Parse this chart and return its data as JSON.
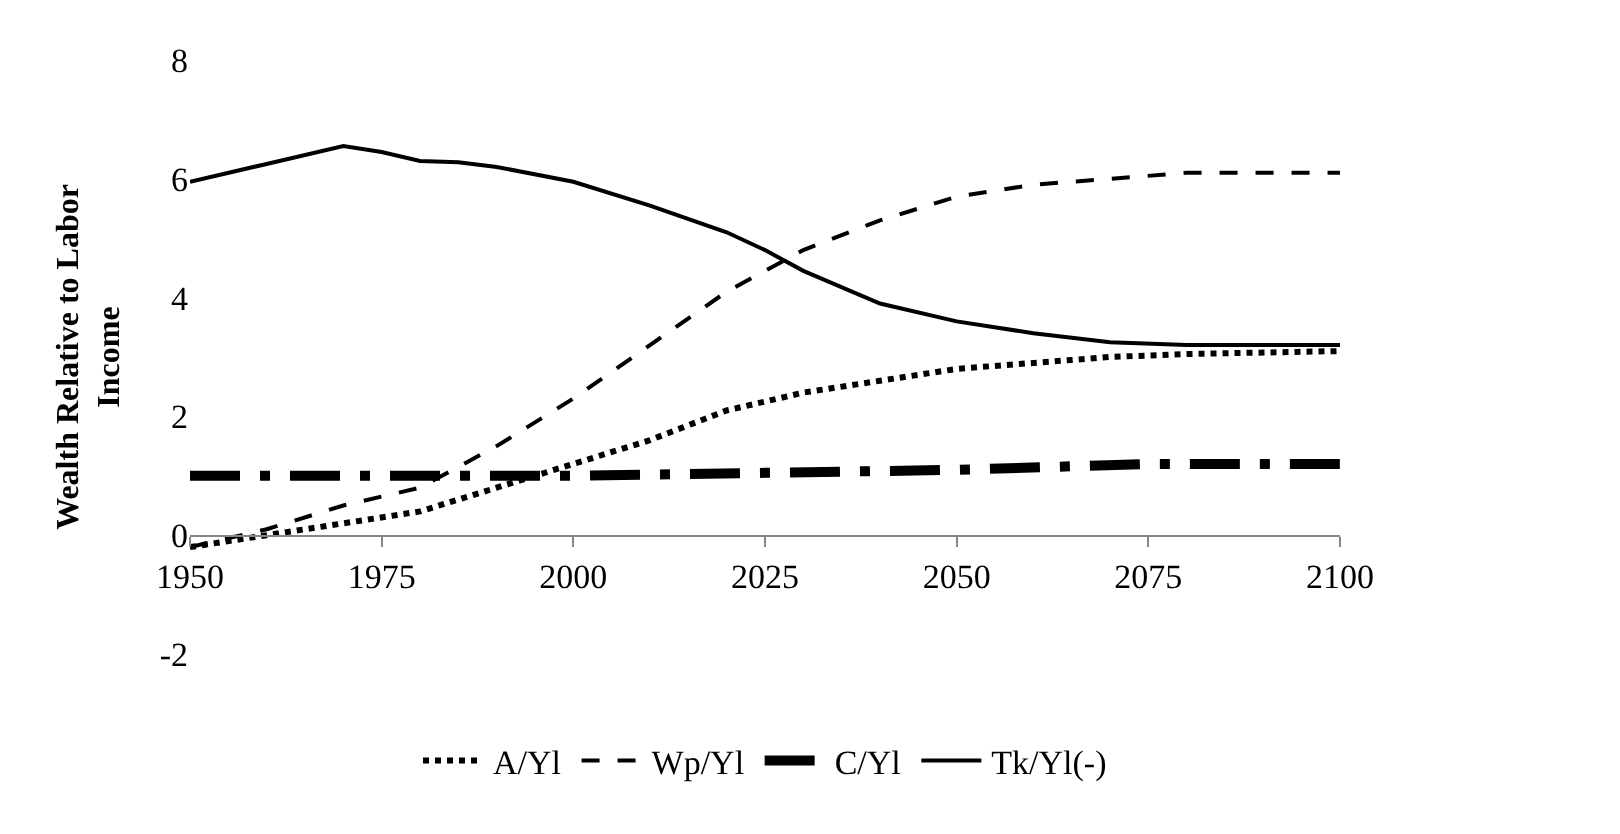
{
  "chart_data": {
    "type": "line",
    "ylabel": "Wealth Relative to Labor Income",
    "xlim": [
      1950,
      2100
    ],
    "xticks": [
      1950,
      1975,
      2000,
      2025,
      2050,
      2075,
      2100
    ],
    "ylim": [
      -2,
      8
    ],
    "yticks": [
      -2,
      0,
      2,
      4,
      6,
      8
    ],
    "legend": "bottom",
    "marker": "none",
    "series": [
      {
        "name": "A/Yl",
        "color": "#000000",
        "line_style": "dotted",
        "x": [
          1950,
          1960,
          1970,
          1980,
          1990,
          2000,
          2010,
          2020,
          2030,
          2040,
          2050,
          2060,
          2070,
          2080,
          2100
        ],
        "values": [
          -0.2,
          0.0,
          0.2,
          0.4,
          0.8,
          1.2,
          1.6,
          2.1,
          2.4,
          2.6,
          2.8,
          2.9,
          3.0,
          3.05,
          3.1
        ]
      },
      {
        "name": "Wp/Yl",
        "color": "#000000",
        "line_style": "dashed",
        "x": [
          1950,
          1960,
          1970,
          1980,
          1990,
          2000,
          2010,
          2020,
          2030,
          2040,
          2050,
          2060,
          2070,
          2080,
          2100
        ],
        "values": [
          -0.2,
          0.1,
          0.5,
          0.8,
          1.5,
          2.3,
          3.2,
          4.1,
          4.8,
          5.3,
          5.7,
          5.9,
          6.0,
          6.1,
          6.1
        ]
      },
      {
        "name": "C/Yl",
        "color": "#000000",
        "line_style": "dashdot",
        "x": [
          1950,
          1975,
          2000,
          2025,
          2050,
          2075,
          2100
        ],
        "values": [
          1.0,
          1.0,
          1.0,
          1.05,
          1.1,
          1.2,
          1.2
        ]
      },
      {
        "name": "Tk/Yl(-)",
        "color": "#000000",
        "line_style": "solid",
        "x": [
          1950,
          1960,
          1970,
          1975,
          1980,
          1985,
          1990,
          2000,
          2010,
          2020,
          2025,
          2030,
          2040,
          2050,
          2060,
          2070,
          2080,
          2100
        ],
        "values": [
          5.95,
          6.25,
          6.55,
          6.45,
          6.3,
          6.28,
          6.2,
          5.95,
          5.55,
          5.1,
          4.8,
          4.45,
          3.9,
          3.6,
          3.4,
          3.25,
          3.2,
          3.2
        ]
      }
    ]
  }
}
